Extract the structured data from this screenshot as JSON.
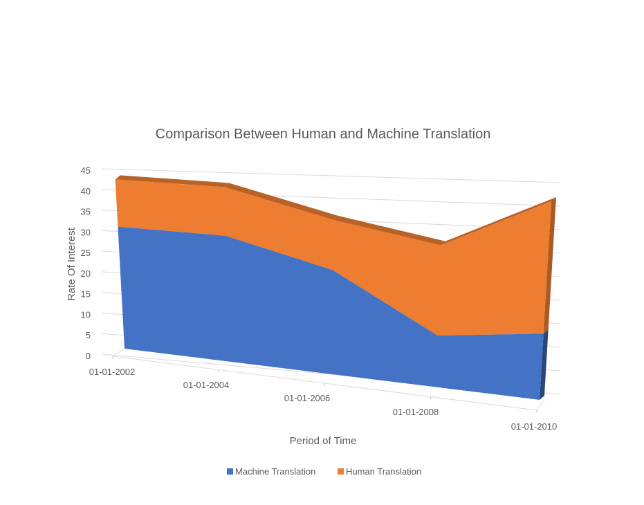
{
  "chart_data": {
    "type": "area",
    "title": "Comparison Between Human and Machine Translation",
    "xlabel": "Period  of  Time",
    "ylabel": "Rate Of Interest",
    "categories": [
      "01-01-2002",
      "01-01-2004",
      "01-01-2006",
      "01-01-2008",
      "01-01-2010"
    ],
    "y_ticks": [
      "0",
      "5",
      "10",
      "15",
      "20",
      "25",
      "30",
      "35",
      "40",
      "45"
    ],
    "ylim": [
      0,
      45
    ],
    "stacked": true,
    "series": [
      {
        "name": "Machine Translation",
        "values": [
          31,
          31,
          25,
          12,
          15
        ],
        "color": "#4472C4"
      },
      {
        "name": "Human Translation",
        "values": [
          12,
          12,
          12,
          21,
          30
        ],
        "color": "#ED7D31"
      }
    ],
    "grid": true,
    "legend": "bottom",
    "view": "3d"
  }
}
